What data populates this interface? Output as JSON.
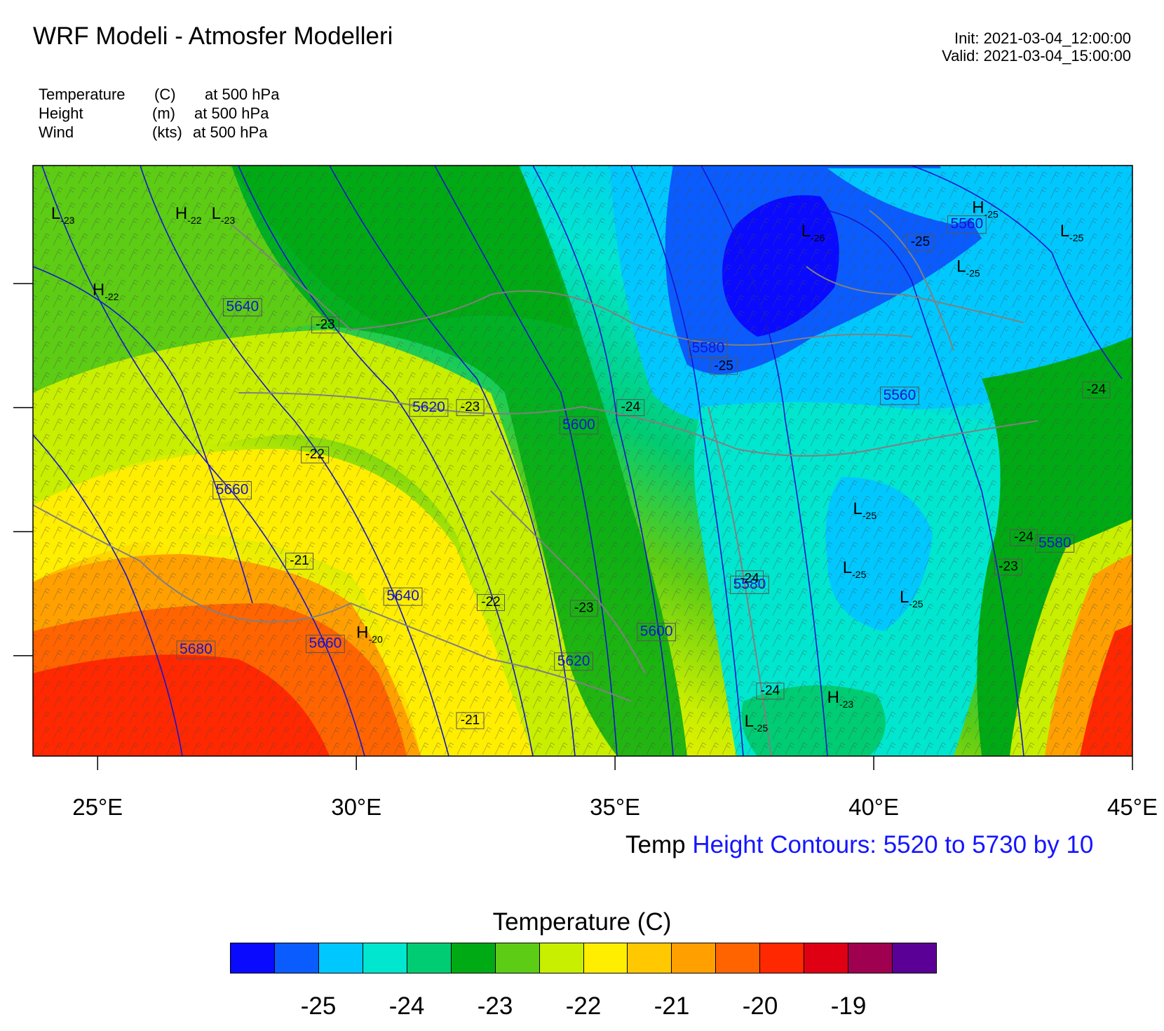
{
  "header": {
    "title": "WRF Modeli - Atmosfer Modelleri",
    "init": "Init: 2021-03-04_12:00:00",
    "valid": "Valid: 2021-03-04_15:00:00"
  },
  "fields": [
    {
      "name": "Temperature",
      "unit": "(C)",
      "level": "at   500 hPa"
    },
    {
      "name": "Height",
      "unit": "(m)",
      "level": "at   500 hPa"
    },
    {
      "name": "Wind",
      "unit": "(kts)",
      "level": "at   500 hPa"
    }
  ],
  "map": {
    "lon_ticks": [
      "25°E",
      "30°E",
      "35°E",
      "40°E",
      "45°E"
    ],
    "lon_values": [
      25,
      30,
      35,
      40,
      45
    ],
    "lon_range": [
      23.75,
      45.0
    ],
    "lat_ticks_unlabeled": 4,
    "frame_color": "#000000",
    "border_color": "#808080",
    "contour_color": "#1515d0"
  },
  "height_labels": [
    {
      "text": "5640",
      "lon": 27.8,
      "lat": 0.76
    },
    {
      "text": "5620",
      "lon": 31.4,
      "lat": 0.59
    },
    {
      "text": "5600",
      "lon": 34.3,
      "lat": 0.56
    },
    {
      "text": "5660",
      "lon": 27.6,
      "lat": 0.45
    },
    {
      "text": "5640",
      "lon": 30.9,
      "lat": 0.27
    },
    {
      "text": "5680",
      "lon": 26.9,
      "lat": 0.18
    },
    {
      "text": "5660",
      "lon": 29.4,
      "lat": 0.19
    },
    {
      "text": "5620",
      "lon": 34.2,
      "lat": 0.16
    },
    {
      "text": "5600",
      "lon": 35.8,
      "lat": 0.21
    },
    {
      "text": "5580",
      "lon": 37.6,
      "lat": 0.29
    },
    {
      "text": "5580",
      "lon": 36.8,
      "lat": 0.69
    },
    {
      "text": "5560",
      "lon": 40.5,
      "lat": 0.61
    },
    {
      "text": "5560",
      "lon": 41.8,
      "lat": 0.9
    },
    {
      "text": "5580",
      "lon": 43.5,
      "lat": 0.36
    }
  ],
  "temp_labels": [
    {
      "text": "-23",
      "lon": 29.4,
      "lat": 0.73
    },
    {
      "text": "-23",
      "lon": 32.2,
      "lat": 0.59
    },
    {
      "text": "-24",
      "lon": 35.3,
      "lat": 0.59
    },
    {
      "text": "-25",
      "lon": 37.1,
      "lat": 0.66
    },
    {
      "text": "-22",
      "lon": 29.2,
      "lat": 0.51
    },
    {
      "text": "-21",
      "lon": 28.9,
      "lat": 0.33
    },
    {
      "text": "-22",
      "lon": 32.6,
      "lat": 0.26
    },
    {
      "text": "-23",
      "lon": 34.4,
      "lat": 0.25
    },
    {
      "text": "-21",
      "lon": 32.2,
      "lat": 0.06
    },
    {
      "text": "-24",
      "lon": 37.6,
      "lat": 0.3
    },
    {
      "text": "-24",
      "lon": 38.0,
      "lat": 0.11
    },
    {
      "text": "-25",
      "lon": 40.9,
      "lat": 0.87
    },
    {
      "text": "-24",
      "lon": 44.3,
      "lat": 0.62
    },
    {
      "text": "-24",
      "lon": 42.9,
      "lat": 0.37
    },
    {
      "text": "-23",
      "lon": 42.6,
      "lat": 0.32
    }
  ],
  "extrema": [
    {
      "sym": "L",
      "val": "-23",
      "lon": 24.1,
      "lat": 0.91
    },
    {
      "sym": "H",
      "val": "-22",
      "lon": 26.5,
      "lat": 0.91
    },
    {
      "sym": "L",
      "val": "-23",
      "lon": 27.2,
      "lat": 0.91
    },
    {
      "sym": "H",
      "val": "-22",
      "lon": 24.9,
      "lat": 0.78
    },
    {
      "sym": "L",
      "val": "-26",
      "lon": 38.6,
      "lat": 0.88
    },
    {
      "sym": "H",
      "val": "-25",
      "lon": 41.9,
      "lat": 0.92
    },
    {
      "sym": "L",
      "val": "-25",
      "lon": 43.6,
      "lat": 0.88
    },
    {
      "sym": "L",
      "val": "-25",
      "lon": 41.6,
      "lat": 0.82
    },
    {
      "sym": "L",
      "val": "-25",
      "lon": 39.6,
      "lat": 0.41
    },
    {
      "sym": "L",
      "val": "-25",
      "lon": 39.4,
      "lat": 0.31
    },
    {
      "sym": "L",
      "val": "-25",
      "lon": 40.5,
      "lat": 0.26
    },
    {
      "sym": "H",
      "val": "-20",
      "lon": 30.0,
      "lat": 0.2
    },
    {
      "sym": "H",
      "val": "-23",
      "lon": 39.1,
      "lat": 0.09
    },
    {
      "sym": "L",
      "val": "-25",
      "lon": 37.5,
      "lat": 0.05
    }
  ],
  "caption": {
    "temp": "Temp",
    "height": "Height Contours: 5520 to 5730 by 10"
  },
  "colorbar": {
    "title": "Temperature  (C)",
    "colors": [
      "#0a0aff",
      "#0a5cff",
      "#00c8ff",
      "#00e6cf",
      "#00cc73",
      "#00aa14",
      "#5ccc14",
      "#c8ee00",
      "#ffee00",
      "#ffc800",
      "#ffa000",
      "#ff6400",
      "#ff2800",
      "#e00014",
      "#a00050",
      "#5a0096"
    ],
    "ticks": [
      "-25",
      "-24",
      "-23",
      "-22",
      "-21",
      "-20",
      "-19"
    ],
    "tick_boundaries": [
      2,
      4,
      6,
      8,
      10,
      12,
      14
    ]
  }
}
